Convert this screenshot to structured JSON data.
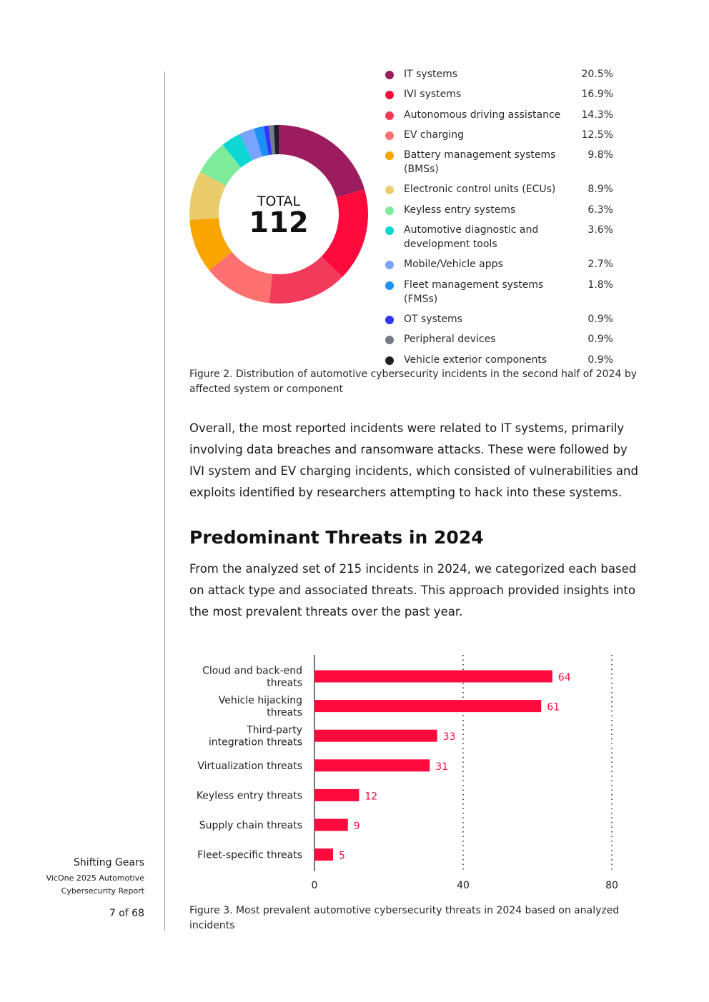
{
  "sidebar": {
    "title": "Shifting Gears",
    "subtitle_line1": "VicOne 2025 Automotive",
    "subtitle_line2": "Cybersecurity Report",
    "page": "7 of 68"
  },
  "donut_chart": {
    "center_label": "TOTAL",
    "center_value": "112",
    "chart_data": {
      "type": "pie",
      "total": 112,
      "slices": [
        {
          "label": "IT systems",
          "value": 20.5,
          "display": "20.5%",
          "color": "#9c1d5f"
        },
        {
          "label": "IVI systems",
          "value": 16.9,
          "display": "16.9%",
          "color": "#ff0a3d"
        },
        {
          "label": "Autonomous driving assistance",
          "value": 14.3,
          "display": "14.3%",
          "color": "#f23b5a"
        },
        {
          "label": "EV charging",
          "value": 12.5,
          "display": "12.5%",
          "color": "#ff7070"
        },
        {
          "label": "Battery management systems (BMSs)",
          "value": 9.8,
          "display": "9.8%",
          "color": "#fba500"
        },
        {
          "label": "Electronic control units (ECUs)",
          "value": 8.9,
          "display": "8.9%",
          "color": "#e9cc6c"
        },
        {
          "label": "Keyless entry systems",
          "value": 6.3,
          "display": "6.3%",
          "color": "#7eeb9b"
        },
        {
          "label": "Automotive diagnostic and development tools",
          "value": 3.6,
          "display": "3.6%",
          "color": "#0ed6d3"
        },
        {
          "label": "Mobile/Vehicle apps",
          "value": 2.7,
          "display": "2.7%",
          "color": "#78a4ff"
        },
        {
          "label": "Fleet management systems (FMSs)",
          "value": 1.8,
          "display": "1.8%",
          "color": "#1d90f5"
        },
        {
          "label": "OT systems",
          "value": 0.9,
          "display": "0.9%",
          "color": "#3434ff"
        },
        {
          "label": "Peripheral devices",
          "value": 0.9,
          "display": "0.9%",
          "color": "#757c88"
        },
        {
          "label": "Vehicle exterior components",
          "value": 0.9,
          "display": "0.9%",
          "color": "#1c1f26"
        }
      ]
    }
  },
  "figure2_caption": "Figure 2. Distribution of automotive cybersecurity incidents in the second half of 2024 by affected system or component",
  "paragraph1": "Overall, the most reported incidents were related to IT systems, primarily involving data breaches and ransomware attacks. These were followed by IVI system and EV charging incidents, which consisted of vulnerabilities and exploits identified by researchers attempting to hack into these systems.",
  "section_heading": "Predominant Threats in 2024",
  "paragraph2": "From the analyzed set of 215 incidents in 2024, we categorized each based on attack type and associated threats. This approach provided insights into the most prevalent threats over the past year.",
  "bar_chart": {
    "chart_data": {
      "type": "bar",
      "orientation": "horizontal",
      "categories": [
        [
          "Cloud and back-end",
          "threats"
        ],
        [
          "Vehicle hijacking",
          "threats"
        ],
        [
          "Third-party",
          "integration threats"
        ],
        [
          "Virtualization threats"
        ],
        [
          "Keyless entry threats"
        ],
        [
          "Supply chain threats"
        ],
        [
          "Fleet-specific threats"
        ]
      ],
      "values": [
        64,
        61,
        33,
        31,
        12,
        9,
        5
      ],
      "xlim": [
        0,
        80
      ],
      "xticks": [
        0,
        40,
        80
      ],
      "grid": "dotted vertical at 40 and 80",
      "bar_color": "#ff0a3d"
    }
  },
  "figure3_caption": "Figure 3. Most prevalent automotive cybersecurity threats in 2024 based on analyzed incidents"
}
